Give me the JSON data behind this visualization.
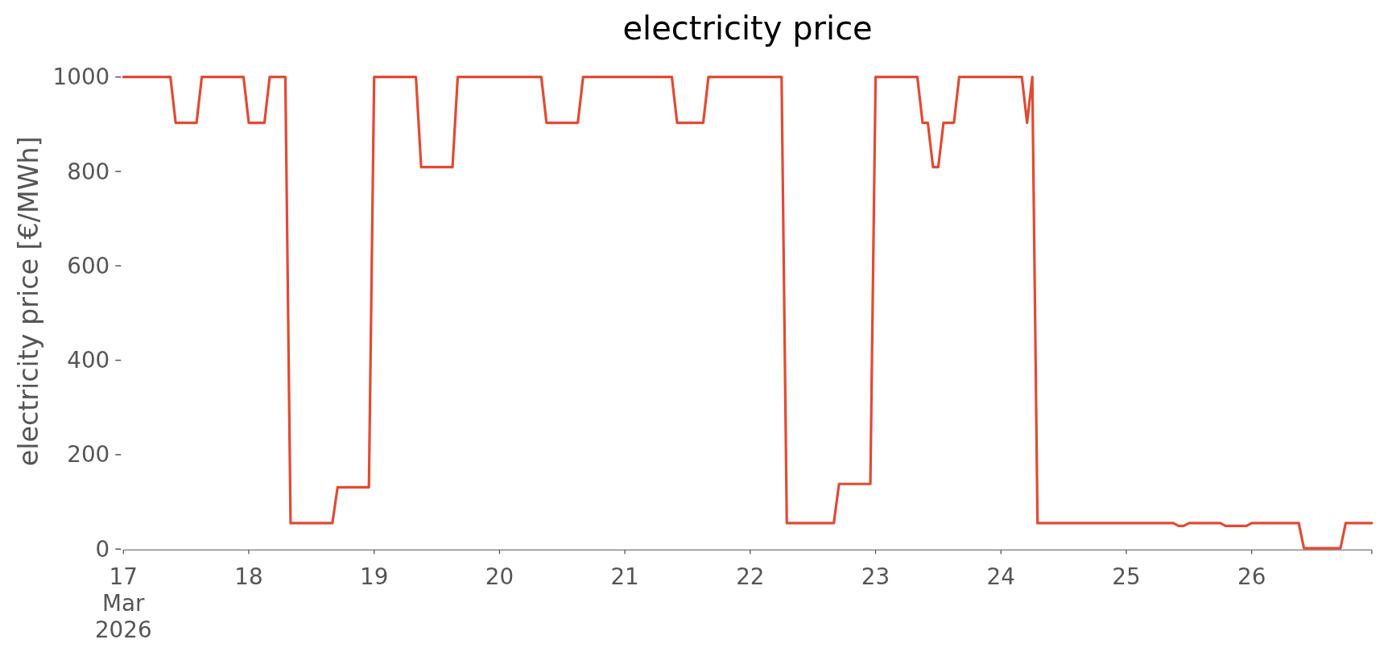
{
  "chart_data": {
    "type": "line",
    "title": "electricity price",
    "ylabel": "electricity price [€/MWh]",
    "x": [
      "2026-03-17T00:00",
      "2026-03-17T09:00",
      "2026-03-17T10:00",
      "2026-03-17T14:00",
      "2026-03-17T15:00",
      "2026-03-17T23:00",
      "2026-03-18T00:00",
      "2026-03-18T03:00",
      "2026-03-18T04:00",
      "2026-03-18T07:00",
      "2026-03-18T08:00",
      "2026-03-18T16:00",
      "2026-03-18T17:00",
      "2026-03-18T23:00",
      "2026-03-19T00:00",
      "2026-03-19T08:00",
      "2026-03-19T09:00",
      "2026-03-19T15:00",
      "2026-03-19T16:00",
      "2026-03-20T08:00",
      "2026-03-20T09:00",
      "2026-03-20T15:00",
      "2026-03-20T16:00",
      "2026-03-21T09:00",
      "2026-03-21T10:00",
      "2026-03-21T15:00",
      "2026-03-21T16:00",
      "2026-03-22T06:00",
      "2026-03-22T07:00",
      "2026-03-22T16:00",
      "2026-03-22T17:00",
      "2026-03-22T23:00",
      "2026-03-23T00:00",
      "2026-03-23T08:00",
      "2026-03-23T09:00",
      "2026-03-23T10:00",
      "2026-03-23T11:00",
      "2026-03-23T12:00",
      "2026-03-23T13:00",
      "2026-03-23T15:00",
      "2026-03-23T16:00",
      "2026-03-24T04:00",
      "2026-03-24T05:00",
      "2026-03-24T06:00",
      "2026-03-24T07:00",
      "2026-03-25T09:00",
      "2026-03-25T10:00",
      "2026-03-25T11:00",
      "2026-03-25T12:00",
      "2026-03-25T18:00",
      "2026-03-25T19:00",
      "2026-03-25T23:00",
      "2026-03-26T00:00",
      "2026-03-26T09:00",
      "2026-03-26T10:00",
      "2026-03-26T17:00",
      "2026-03-26T18:00",
      "2026-03-26T23:00"
    ],
    "series": [
      {
        "color": "#e24a33",
        "values": [
          1000,
          1000,
          903,
          903,
          1000,
          1000,
          903,
          903,
          1000,
          1000,
          55,
          55,
          131,
          131,
          1000,
          1000,
          809,
          809,
          1000,
          1000,
          903,
          903,
          1000,
          1000,
          903,
          903,
          1000,
          1000,
          55,
          55,
          138,
          138,
          1000,
          1000,
          903,
          903,
          809,
          809,
          903,
          903,
          1000,
          1000,
          903,
          1000,
          55,
          55,
          49,
          49,
          55,
          55,
          49,
          49,
          55,
          55,
          2,
          2,
          55,
          55
        ]
      }
    ],
    "xlim": [
      "2026-03-17T00:00",
      "2026-03-26T23:00"
    ],
    "xticks": [
      {
        "value": "2026-03-17",
        "label": "17\nMar\n2026"
      },
      {
        "value": "2026-03-18",
        "label": "18"
      },
      {
        "value": "2026-03-19",
        "label": "19"
      },
      {
        "value": "2026-03-20",
        "label": "20"
      },
      {
        "value": "2026-03-21",
        "label": "21"
      },
      {
        "value": "2026-03-22",
        "label": "22"
      },
      {
        "value": "2026-03-23",
        "label": "23"
      },
      {
        "value": "2026-03-24",
        "label": "24"
      },
      {
        "value": "2026-03-25",
        "label": "25"
      },
      {
        "value": "2026-03-26",
        "label": "26"
      },
      {
        "value": "2026-03-26T23:00",
        "label": null
      }
    ],
    "ylim": [
      0,
      1000
    ],
    "yticks": [
      0,
      200,
      400,
      600,
      800,
      1000
    ]
  }
}
